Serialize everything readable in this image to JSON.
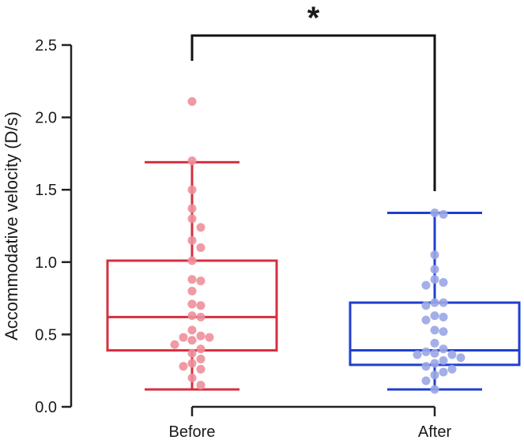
{
  "chart_data": {
    "type": "box",
    "xlabel": "",
    "ylabel": "Accommodative velocity (D/s)",
    "ylim": [
      0.0,
      2.5
    ],
    "yticks": [
      "0.0",
      "0.5",
      "1.0",
      "1.5",
      "2.0",
      "2.5"
    ],
    "categories": [
      "Before",
      "After"
    ],
    "grid": false,
    "legend": "none",
    "significance": {
      "label": "*",
      "between": [
        "Before",
        "After"
      ]
    },
    "series": [
      {
        "category": "Before",
        "color": "#d62f3f",
        "point_color": "#ee8f9a",
        "box": {
          "whisker_low": 0.12,
          "q1": 0.39,
          "median": 0.62,
          "q3": 1.01,
          "whisker_high": 1.69
        },
        "points": [
          2.11,
          1.7,
          1.5,
          1.37,
          1.3,
          1.24,
          1.15,
          1.1,
          1.01,
          0.88,
          0.87,
          0.8,
          0.71,
          0.7,
          0.63,
          0.62,
          0.53,
          0.49,
          0.48,
          0.48,
          0.46,
          0.43,
          0.4,
          0.37,
          0.33,
          0.3,
          0.28,
          0.26,
          0.2,
          0.15
        ]
      },
      {
        "category": "After",
        "color": "#1f3fcf",
        "point_color": "#9aa6e6",
        "box": {
          "whisker_low": 0.12,
          "q1": 0.29,
          "median": 0.39,
          "q3": 0.72,
          "whisker_high": 1.34
        },
        "points": [
          1.34,
          1.33,
          1.05,
          0.95,
          0.88,
          0.86,
          0.84,
          0.72,
          0.72,
          0.7,
          0.63,
          0.62,
          0.6,
          0.53,
          0.52,
          0.44,
          0.4,
          0.38,
          0.37,
          0.36,
          0.36,
          0.34,
          0.32,
          0.3,
          0.28,
          0.26,
          0.24,
          0.22,
          0.18,
          0.12
        ]
      }
    ]
  }
}
